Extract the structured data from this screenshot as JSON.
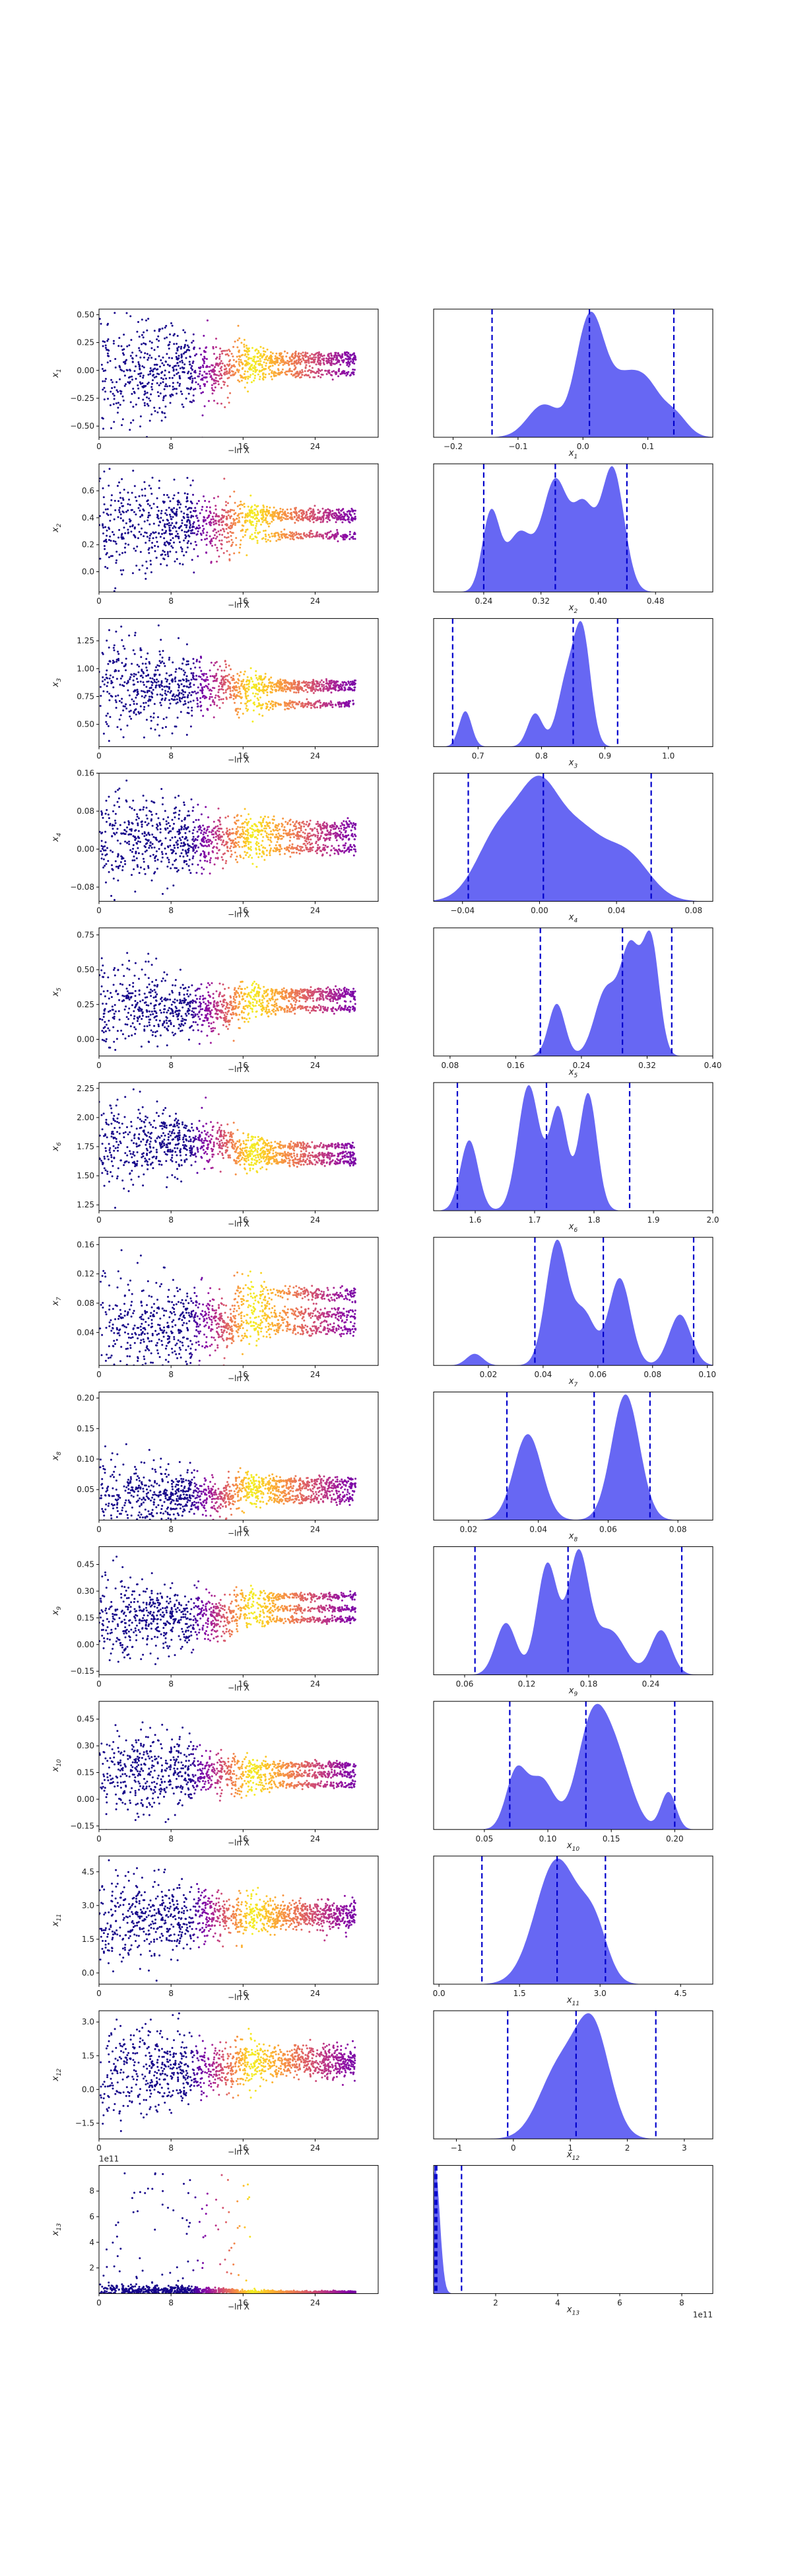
{
  "figure": {
    "multiplier_label": "1e11",
    "x_multiplier_label": "1e11"
  },
  "chart_data": [
    {
      "panel": 1,
      "type": "scatter",
      "xlabel": "−ln X",
      "ylabel": "x1",
      "xlim": [
        0,
        31
      ],
      "ylim": [
        -0.6,
        0.55
      ],
      "xticks": [
        0,
        8,
        16,
        24
      ],
      "yticks": [
        -0.5,
        -0.25,
        0.0,
        0.25,
        0.5
      ],
      "ytick_labels": [
        "−0.50",
        "−0.25",
        "0.00",
        "0.25",
        "0.50"
      ],
      "point_cloud": {
        "early_center": 0.0,
        "early_spread": 0.22,
        "late_modes": [
          0.08,
          -0.02,
          0.13
        ],
        "late_spread": 0.02
      },
      "kde": {
        "xlabel": "x1",
        "xlim": [
          -0.23,
          0.2
        ],
        "xticks": [
          -0.2,
          -0.1,
          0.0,
          0.1
        ],
        "xtick_labels": [
          "−0.2",
          "−0.1",
          "0.0",
          "0.1"
        ],
        "quantile_lines": [
          -0.14,
          0.01,
          0.14
        ],
        "peaks": [
          {
            "mu": -0.06,
            "sigma": 0.025,
            "w": 0.35
          },
          {
            "mu": 0.0,
            "sigma": 0.018,
            "w": 0.6
          },
          {
            "mu": 0.02,
            "sigma": 0.02,
            "w": 0.9
          },
          {
            "mu": 0.065,
            "sigma": 0.022,
            "w": 0.55
          },
          {
            "mu": 0.1,
            "sigma": 0.02,
            "w": 0.45
          },
          {
            "mu": 0.14,
            "sigma": 0.02,
            "w": 0.25
          }
        ]
      }
    },
    {
      "panel": 2,
      "type": "scatter",
      "xlabel": "−ln X",
      "ylabel": "x2",
      "xlim": [
        0,
        31
      ],
      "ylim": [
        -0.15,
        0.8
      ],
      "xticks": [
        0,
        8,
        16,
        24
      ],
      "yticks": [
        0.0,
        0.2,
        0.4,
        0.6
      ],
      "ytick_labels": [
        "0.0",
        "0.2",
        "0.4",
        "0.6"
      ],
      "point_cloud": {
        "early_center": 0.35,
        "early_spread": 0.16,
        "late_modes": [
          0.4,
          0.27,
          0.44
        ],
        "late_spread": 0.015
      },
      "kde": {
        "xlabel": "x2",
        "xlim": [
          0.17,
          0.56
        ],
        "xticks": [
          0.24,
          0.32,
          0.4,
          0.48
        ],
        "xtick_labels": [
          "0.24",
          "0.32",
          "0.40",
          "0.48"
        ],
        "quantile_lines": [
          0.24,
          0.34,
          0.44
        ],
        "peaks": [
          {
            "mu": 0.25,
            "sigma": 0.012,
            "w": 0.6
          },
          {
            "mu": 0.29,
            "sigma": 0.018,
            "w": 0.45
          },
          {
            "mu": 0.34,
            "sigma": 0.018,
            "w": 0.85
          },
          {
            "mu": 0.38,
            "sigma": 0.015,
            "w": 0.6
          },
          {
            "mu": 0.42,
            "sigma": 0.016,
            "w": 0.95
          }
        ]
      }
    },
    {
      "panel": 3,
      "type": "scatter",
      "xlabel": "−ln X",
      "ylabel": "x3",
      "xlim": [
        0,
        31
      ],
      "ylim": [
        0.3,
        1.45
      ],
      "xticks": [
        0,
        8,
        16,
        24
      ],
      "yticks": [
        0.5,
        0.75,
        1.0,
        1.25
      ],
      "ytick_labels": [
        "0.50",
        "0.75",
        "1.00",
        "1.25"
      ],
      "point_cloud": {
        "early_center": 0.85,
        "early_spread": 0.17,
        "late_modes": [
          0.87,
          0.82,
          0.68
        ],
        "late_spread": 0.015
      },
      "kde": {
        "xlabel": "x3",
        "xlim": [
          0.63,
          1.07
        ],
        "xticks": [
          0.7,
          0.8,
          0.9,
          1.0
        ],
        "xtick_labels": [
          "0.7",
          "0.8",
          "0.9",
          "1.0"
        ],
        "quantile_lines": [
          0.66,
          0.85,
          0.92
        ],
        "peaks": [
          {
            "mu": 0.68,
            "sigma": 0.01,
            "w": 0.3
          },
          {
            "mu": 0.79,
            "sigma": 0.012,
            "w": 0.28
          },
          {
            "mu": 0.84,
            "sigma": 0.015,
            "w": 0.55
          },
          {
            "mu": 0.865,
            "sigma": 0.013,
            "w": 0.9
          }
        ]
      }
    },
    {
      "panel": 4,
      "type": "scatter",
      "xlabel": "−ln X",
      "ylabel": "x4",
      "xlim": [
        0,
        31
      ],
      "ylim": [
        -0.11,
        0.16
      ],
      "xticks": [
        0,
        8,
        16,
        24
      ],
      "yticks": [
        -0.08,
        0.0,
        0.08,
        0.16
      ],
      "ytick_labels": [
        "−0.08",
        "0.00",
        "0.08",
        "0.16"
      ],
      "point_cloud": {
        "early_center": 0.02,
        "early_spread": 0.04,
        "late_modes": [
          0.05,
          0.0,
          0.028
        ],
        "late_spread": 0.006
      },
      "kde": {
        "xlabel": "x4",
        "xlim": [
          -0.055,
          0.09
        ],
        "xticks": [
          -0.04,
          0.0,
          0.04,
          0.08
        ],
        "xtick_labels": [
          "−0.04",
          "0.00",
          "0.04",
          "0.08"
        ],
        "quantile_lines": [
          -0.037,
          0.002,
          0.058
        ],
        "peaks": [
          {
            "mu": -0.02,
            "sigma": 0.012,
            "w": 0.55
          },
          {
            "mu": 0.0,
            "sigma": 0.01,
            "w": 0.7
          },
          {
            "mu": 0.02,
            "sigma": 0.012,
            "w": 0.5
          },
          {
            "mu": 0.045,
            "sigma": 0.012,
            "w": 0.35
          }
        ]
      }
    },
    {
      "panel": 5,
      "type": "scatter",
      "xlabel": "−ln X",
      "ylabel": "x5",
      "xlim": [
        0,
        31
      ],
      "ylim": [
        -0.12,
        0.8
      ],
      "xticks": [
        0,
        8,
        16,
        24
      ],
      "yticks": [
        0.0,
        0.25,
        0.5,
        0.75
      ],
      "ytick_labels": [
        "0.00",
        "0.25",
        "0.50",
        "0.75"
      ],
      "point_cloud": {
        "early_center": 0.22,
        "early_spread": 0.13,
        "late_modes": [
          0.3,
          0.22,
          0.34
        ],
        "late_spread": 0.015
      },
      "kde": {
        "xlabel": "x5",
        "xlim": [
          0.06,
          0.4
        ],
        "xticks": [
          0.08,
          0.16,
          0.24,
          0.32,
          0.4
        ],
        "xtick_labels": [
          "0.08",
          "0.16",
          "0.24",
          "0.32",
          "0.40"
        ],
        "quantile_lines": [
          0.19,
          0.29,
          0.35
        ],
        "peaks": [
          {
            "mu": 0.21,
            "sigma": 0.01,
            "w": 0.4
          },
          {
            "mu": 0.27,
            "sigma": 0.014,
            "w": 0.5
          },
          {
            "mu": 0.3,
            "sigma": 0.012,
            "w": 0.8
          },
          {
            "mu": 0.325,
            "sigma": 0.01,
            "w": 0.85
          }
        ]
      }
    },
    {
      "panel": 6,
      "type": "scatter",
      "xlabel": "−ln X",
      "ylabel": "x6",
      "xlim": [
        0,
        31
      ],
      "ylim": [
        1.2,
        2.3
      ],
      "xticks": [
        0,
        8,
        16,
        24
      ],
      "yticks": [
        1.25,
        1.5,
        1.75,
        2.0,
        2.25
      ],
      "ytick_labels": [
        "1.25",
        "1.50",
        "1.75",
        "2.00",
        "2.25"
      ],
      "point_cloud": {
        "early_center": 1.78,
        "early_spread": 0.15,
        "late_modes": [
          1.76,
          1.68,
          1.62
        ],
        "late_spread": 0.015
      },
      "kde": {
        "xlabel": "x6",
        "xlim": [
          1.53,
          2.0
        ],
        "xticks": [
          1.6,
          1.7,
          1.8,
          1.9,
          2.0
        ],
        "xtick_labels": [
          "1.6",
          "1.7",
          "1.8",
          "1.9",
          "2.0"
        ],
        "quantile_lines": [
          1.57,
          1.72,
          1.86
        ],
        "peaks": [
          {
            "mu": 1.59,
            "sigma": 0.015,
            "w": 0.45
          },
          {
            "mu": 1.69,
            "sigma": 0.018,
            "w": 0.8
          },
          {
            "mu": 1.74,
            "sigma": 0.015,
            "w": 0.65
          },
          {
            "mu": 1.79,
            "sigma": 0.015,
            "w": 0.75
          }
        ]
      }
    },
    {
      "panel": 7,
      "type": "scatter",
      "xlabel": "−ln X",
      "ylabel": "x7",
      "xlim": [
        0,
        31
      ],
      "ylim": [
        -0.005,
        0.17
      ],
      "xticks": [
        0,
        8,
        16,
        24
      ],
      "yticks": [
        0.04,
        0.08,
        0.12,
        0.16
      ],
      "ytick_labels": [
        "0.04",
        "0.08",
        "0.12",
        "0.16"
      ],
      "point_cloud": {
        "early_center": 0.05,
        "early_spread": 0.03,
        "late_modes": [
          0.093,
          0.065,
          0.045
        ],
        "late_spread": 0.005
      },
      "kde": {
        "xlabel": "x7",
        "xlim": [
          0.0,
          0.102
        ],
        "xticks": [
          0.02,
          0.04,
          0.06,
          0.08,
          0.1
        ],
        "xtick_labels": [
          "0.02",
          "0.04",
          "0.06",
          "0.08",
          "0.10"
        ],
        "quantile_lines": [
          0.037,
          0.062,
          0.095
        ],
        "peaks": [
          {
            "mu": 0.015,
            "sigma": 0.003,
            "w": 0.08
          },
          {
            "mu": 0.045,
            "sigma": 0.004,
            "w": 0.85
          },
          {
            "mu": 0.055,
            "sigma": 0.004,
            "w": 0.35
          },
          {
            "mu": 0.068,
            "sigma": 0.004,
            "w": 0.6
          },
          {
            "mu": 0.09,
            "sigma": 0.004,
            "w": 0.35
          }
        ]
      }
    },
    {
      "panel": 8,
      "type": "scatter",
      "xlabel": "−ln X",
      "ylabel": "x8",
      "xlim": [
        0,
        31
      ],
      "ylim": [
        0.0,
        0.21
      ],
      "xticks": [
        0,
        8,
        16,
        24
      ],
      "yticks": [
        0.05,
        0.1,
        0.15,
        0.2
      ],
      "ytick_labels": [
        "0.05",
        "0.10",
        "0.15",
        "0.20"
      ],
      "point_cloud": {
        "early_center": 0.04,
        "early_spread": 0.025,
        "late_modes": [
          0.063,
          0.052,
          0.035
        ],
        "late_spread": 0.004
      },
      "kde": {
        "xlabel": "x8",
        "xlim": [
          0.01,
          0.09
        ],
        "xticks": [
          0.02,
          0.04,
          0.06,
          0.08
        ],
        "xtick_labels": [
          "0.02",
          "0.04",
          "0.06",
          "0.08"
        ],
        "quantile_lines": [
          0.031,
          0.056,
          0.072
        ],
        "peaks": [
          {
            "mu": 0.037,
            "sigma": 0.004,
            "w": 0.65
          },
          {
            "mu": 0.065,
            "sigma": 0.004,
            "w": 0.95
          }
        ]
      }
    },
    {
      "panel": 9,
      "type": "scatter",
      "xlabel": "−ln X",
      "ylabel": "x9",
      "xlim": [
        0,
        31
      ],
      "ylim": [
        -0.17,
        0.55
      ],
      "xticks": [
        0,
        8,
        16,
        24
      ],
      "yticks": [
        -0.15,
        0.0,
        0.15,
        0.3,
        0.45
      ],
      "ytick_labels": [
        "−0.15",
        "0.00",
        "0.15",
        "0.30",
        "0.45"
      ],
      "point_cloud": {
        "early_center": 0.15,
        "early_spread": 0.1,
        "late_modes": [
          0.27,
          0.14,
          0.2
        ],
        "late_spread": 0.01
      },
      "kde": {
        "xlabel": "x9",
        "xlim": [
          0.03,
          0.3
        ],
        "xticks": [
          0.06,
          0.12,
          0.18,
          0.24
        ],
        "xtick_labels": [
          "0.06",
          "0.12",
          "0.18",
          "0.24"
        ],
        "quantile_lines": [
          0.07,
          0.16,
          0.27
        ],
        "peaks": [
          {
            "mu": 0.1,
            "sigma": 0.01,
            "w": 0.35
          },
          {
            "mu": 0.14,
            "sigma": 0.01,
            "w": 0.75
          },
          {
            "mu": 0.17,
            "sigma": 0.01,
            "w": 0.8
          },
          {
            "mu": 0.2,
            "sigma": 0.015,
            "w": 0.3
          },
          {
            "mu": 0.25,
            "sigma": 0.01,
            "w": 0.3
          }
        ]
      }
    },
    {
      "panel": 10,
      "type": "scatter",
      "xlabel": "−ln X",
      "ylabel": "x10",
      "xlim": [
        0,
        31
      ],
      "ylim": [
        -0.17,
        0.55
      ],
      "xticks": [
        0,
        8,
        16,
        24
      ],
      "yticks": [
        -0.15,
        0.0,
        0.15,
        0.3,
        0.45
      ],
      "ytick_labels": [
        "−0.15",
        "0.00",
        "0.15",
        "0.30",
        "0.45"
      ],
      "point_cloud": {
        "early_center": 0.15,
        "early_spread": 0.1,
        "late_modes": [
          0.19,
          0.08,
          0.14
        ],
        "late_spread": 0.01
      },
      "kde": {
        "xlabel": "x10",
        "xlim": [
          0.01,
          0.23
        ],
        "xticks": [
          0.05,
          0.1,
          0.15,
          0.2
        ],
        "xtick_labels": [
          "0.05",
          "0.10",
          "0.15",
          "0.20"
        ],
        "quantile_lines": [
          0.07,
          0.13,
          0.2
        ],
        "peaks": [
          {
            "mu": 0.075,
            "sigma": 0.008,
            "w": 0.45
          },
          {
            "mu": 0.095,
            "sigma": 0.01,
            "w": 0.4
          },
          {
            "mu": 0.135,
            "sigma": 0.012,
            "w": 0.85
          },
          {
            "mu": 0.155,
            "sigma": 0.012,
            "w": 0.5
          },
          {
            "mu": 0.195,
            "sigma": 0.006,
            "w": 0.3
          }
        ]
      }
    },
    {
      "panel": 11,
      "type": "scatter",
      "xlabel": "−ln X",
      "ylabel": "x11",
      "xlim": [
        0,
        31
      ],
      "ylim": [
        -0.5,
        5.2
      ],
      "xticks": [
        0,
        8,
        16,
        24
      ],
      "yticks": [
        0.0,
        1.5,
        3.0,
        4.5
      ],
      "ytick_labels": [
        "0.0",
        "1.5",
        "3.0",
        "4.5"
      ],
      "point_cloud": {
        "early_center": 2.5,
        "early_spread": 0.9,
        "late_modes": [
          2.6,
          2.3,
          2.8
        ],
        "late_spread": 0.25
      },
      "kde": {
        "xlabel": "x11",
        "xlim": [
          -0.1,
          5.1
        ],
        "xticks": [
          0.0,
          1.5,
          3.0,
          4.5
        ],
        "xtick_labels": [
          "0.0",
          "1.5",
          "3.0",
          "4.5"
        ],
        "quantile_lines": [
          0.8,
          2.2,
          3.1
        ],
        "peaks": [
          {
            "mu": 2.2,
            "sigma": 0.4,
            "w": 0.9
          },
          {
            "mu": 2.9,
            "sigma": 0.25,
            "w": 0.35
          }
        ]
      }
    },
    {
      "panel": 12,
      "type": "scatter",
      "xlabel": "−ln X",
      "ylabel": "x12",
      "xlim": [
        0,
        31
      ],
      "ylim": [
        -2.2,
        3.5
      ],
      "xticks": [
        0,
        8,
        16,
        24
      ],
      "yticks": [
        -1.5,
        0.0,
        1.5,
        3.0
      ],
      "ytick_labels": [
        "−1.5",
        "0.0",
        "1.5",
        "3.0"
      ],
      "point_cloud": {
        "early_center": 0.9,
        "early_spread": 0.9,
        "late_modes": [
          1.3,
          0.9,
          1.6
        ],
        "late_spread": 0.25
      },
      "kde": {
        "xlabel": "x12",
        "xlim": [
          -1.4,
          3.5
        ],
        "xticks": [
          -1,
          0,
          1,
          2,
          3
        ],
        "xtick_labels": [
          "−1",
          "0",
          "1",
          "2",
          "3"
        ],
        "quantile_lines": [
          -0.1,
          1.1,
          2.5
        ],
        "peaks": [
          {
            "mu": 0.8,
            "sigma": 0.35,
            "w": 0.55
          },
          {
            "mu": 1.4,
            "sigma": 0.3,
            "w": 0.85
          }
        ]
      }
    },
    {
      "panel": 13,
      "type": "scatter",
      "xlabel": "−ln X",
      "ylabel": "x13",
      "xlim": [
        0,
        31
      ],
      "ylim": [
        0,
        10
      ],
      "y_multiplier": "1e11",
      "xticks": [
        0,
        8,
        16,
        24
      ],
      "yticks": [
        2,
        4,
        6,
        8
      ],
      "ytick_labels": [
        "2",
        "4",
        "6",
        "8"
      ],
      "point_cloud": {
        "early_center": 0.2,
        "early_spread": 0.2,
        "late_modes": [
          0.1,
          0.1,
          0.1
        ],
        "late_spread": 0.05,
        "sparse_outliers": true
      },
      "kde": {
        "xlabel": "x13",
        "xlim": [
          0,
          9
        ],
        "x_multiplier": "1e11",
        "xticks": [
          2,
          4,
          6,
          8
        ],
        "xtick_labels": [
          "2",
          "4",
          "6",
          "8"
        ],
        "quantile_lines": [
          0.05,
          0.1,
          0.9
        ],
        "peaks": [
          {
            "mu": 0.05,
            "sigma": 0.15,
            "w": 1.0
          }
        ]
      }
    }
  ]
}
